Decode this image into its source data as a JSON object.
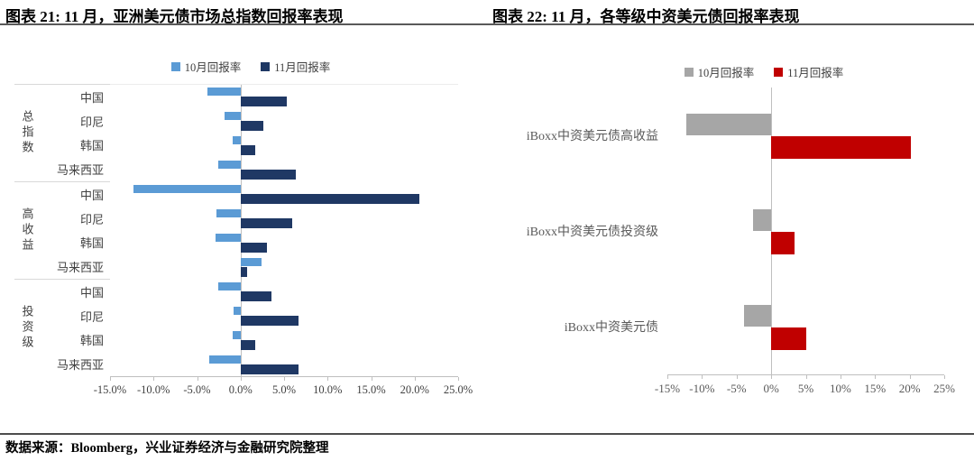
{
  "footer": {
    "source": "数据来源：Bloomberg，兴业证券经济与金融研究院整理"
  },
  "chart_data": [
    {
      "type": "bar",
      "orientation": "horizontal",
      "title": "图表 21: 11 月，亚洲美元债市场总指数回报率表现",
      "legend": [
        {
          "name": "10月回报率",
          "color": "#5B9BD5"
        },
        {
          "name": "11月回报率",
          "color": "#1F3864"
        }
      ],
      "xlim": [
        -15,
        25
      ],
      "tick_step": 5,
      "x_tick_labels": [
        "-15.0%",
        "-10.0%",
        "-5.0%",
        "0.0%",
        "5.0%",
        "10.0%",
        "15.0%",
        "20.0%",
        "25.0%"
      ],
      "grid": false,
      "legend_position": "top",
      "groups": [
        {
          "name": "总指数",
          "categories": [
            "中国",
            "印尼",
            "韩国",
            "马来西亚"
          ],
          "series": [
            {
              "name": "10月回报率",
              "values": [
                -3.8,
                -1.8,
                -0.9,
                -2.6
              ]
            },
            {
              "name": "11月回报率",
              "values": [
                5.3,
                2.6,
                1.7,
                6.3
              ]
            }
          ]
        },
        {
          "name": "高收益",
          "categories": [
            "中国",
            "印尼",
            "韩国",
            "马来西亚"
          ],
          "series": [
            {
              "name": "10月回报率",
              "values": [
                -12.3,
                -2.8,
                -2.9,
                2.4
              ]
            },
            {
              "name": "11月回报率",
              "values": [
                20.5,
                5.9,
                3.0,
                0.8
              ]
            }
          ]
        },
        {
          "name": "投资级",
          "categories": [
            "中国",
            "印尼",
            "韩国",
            "马来西亚"
          ],
          "series": [
            {
              "name": "10月回报率",
              "values": [
                -2.6,
                -0.8,
                -0.9,
                -3.6
              ]
            },
            {
              "name": "11月回报率",
              "values": [
                3.5,
                6.7,
                1.7,
                6.7
              ]
            }
          ]
        }
      ]
    },
    {
      "type": "bar",
      "orientation": "horizontal",
      "title": "图表 22: 11 月，各等级中资美元债回报率表现",
      "legend": [
        {
          "name": "10月回报率",
          "color": "#A6A6A6"
        },
        {
          "name": "11月回报率",
          "color": "#C00000"
        }
      ],
      "xlim": [
        -15,
        25
      ],
      "tick_step": 5,
      "x_tick_labels": [
        "-15%",
        "-10%",
        "-5%",
        "0%",
        "5%",
        "10%",
        "15%",
        "20%",
        "25%"
      ],
      "grid": false,
      "legend_position": "top",
      "categories": [
        "iBoxx中资美元债高收益",
        "iBoxx中资美元债投资级",
        "iBoxx中资美元债"
      ],
      "series": [
        {
          "name": "10月回报率",
          "color": "#A6A6A6",
          "values": [
            -12.3,
            -2.6,
            -3.9
          ]
        },
        {
          "name": "11月回报率",
          "color": "#C00000",
          "values": [
            20.2,
            3.4,
            5.1
          ]
        }
      ]
    }
  ]
}
